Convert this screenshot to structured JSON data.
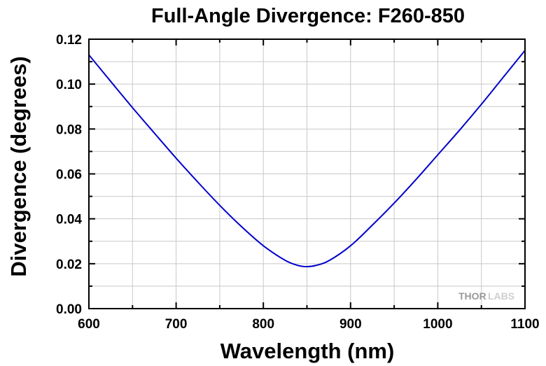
{
  "chart_data": {
    "type": "line",
    "title": "Full-Angle Divergence: F260-850",
    "xlabel": "Wavelength (nm)",
    "ylabel": "Divergence (degrees)",
    "xlim": [
      600,
      1100
    ],
    "ylim": [
      0,
      0.12
    ],
    "x_ticks": [
      600,
      700,
      800,
      900,
      1000,
      1100
    ],
    "x_tick_labels": [
      "600",
      "700",
      "800",
      "900",
      "1000",
      "1100"
    ],
    "y_ticks": [
      0,
      0.02,
      0.04,
      0.06,
      0.08,
      0.1,
      0.12
    ],
    "y_tick_labels": [
      "0.00",
      "0.02",
      "0.04",
      "0.06",
      "0.08",
      "0.10",
      "0.12"
    ],
    "grid": true,
    "series": [
      {
        "color": "#0000cc",
        "x": [
          600,
          625,
          650,
          675,
          700,
          725,
          750,
          775,
          800,
          825,
          840,
          850,
          860,
          875,
          900,
          925,
          950,
          975,
          1000,
          1025,
          1050,
          1075,
          1100
        ],
        "y": [
          0.113,
          0.1012,
          0.0895,
          0.0782,
          0.067,
          0.0563,
          0.046,
          0.0365,
          0.028,
          0.0215,
          0.0192,
          0.0187,
          0.0192,
          0.0213,
          0.028,
          0.0372,
          0.047,
          0.0575,
          0.0685,
          0.0795,
          0.091,
          0.103,
          0.115
        ]
      }
    ]
  },
  "logo": {
    "text_dark": "THOR",
    "text_light": "LABS"
  }
}
